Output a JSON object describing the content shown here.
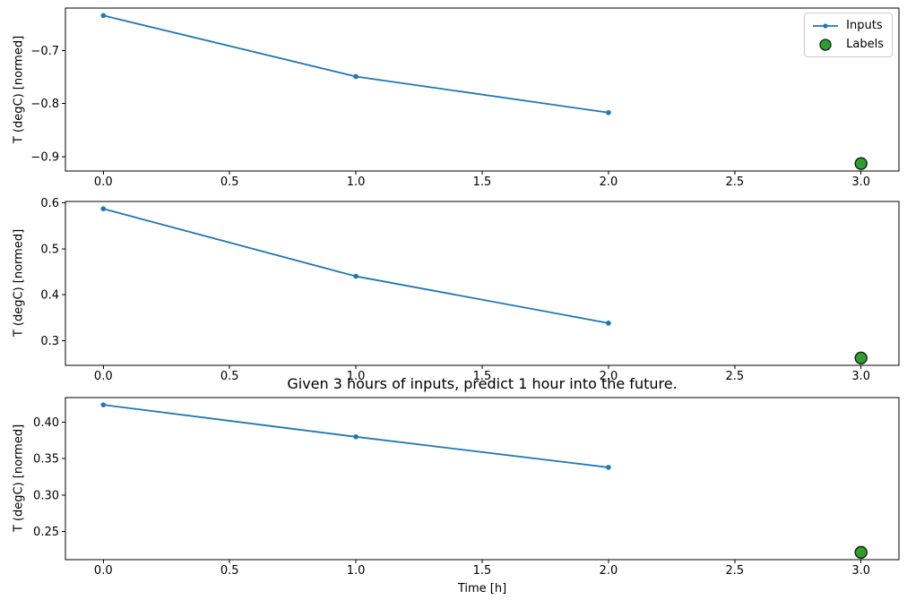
{
  "colors": {
    "inputs_line": "#1f77b4",
    "labels_marker_fill": "#2ca02c",
    "labels_marker_edge": "#1a1a1a",
    "axes_frame": "#000000",
    "text": "#000000",
    "legend_border": "#cccccc",
    "background": "#ffffff"
  },
  "legend": {
    "position": "upper right",
    "entries": [
      {
        "label": "Inputs",
        "sample": "line-with-dot-marker"
      },
      {
        "label": "Labels",
        "sample": "filled-circle"
      }
    ]
  },
  "chart_data": {
    "type": "line",
    "title": "Given 3 hours of inputs, predict 1 hour into the future.",
    "xlabel": "Time [h]",
    "grid": false,
    "xlim": [
      -0.15,
      3.15
    ],
    "xticks": [
      {
        "value": 0.0,
        "label": "0.0"
      },
      {
        "value": 0.5,
        "label": "0.5"
      },
      {
        "value": 1.0,
        "label": "1.0"
      },
      {
        "value": 1.5,
        "label": "1.5"
      },
      {
        "value": 2.0,
        "label": "2.0"
      },
      {
        "value": 2.5,
        "label": "2.5"
      },
      {
        "value": 3.0,
        "label": "3.0"
      }
    ],
    "subplots": [
      {
        "ylabel": "T (degC) [normed]",
        "ylim": [
          -0.927,
          -0.62
        ],
        "yticks": [
          {
            "value": -0.7,
            "label": "−0.7"
          },
          {
            "value": -0.8,
            "label": "−0.8"
          },
          {
            "value": -0.9,
            "label": "−0.9"
          }
        ],
        "inputs": {
          "name": "Inputs",
          "x": [
            0,
            1,
            2
          ],
          "y": [
            -0.634,
            -0.749,
            -0.817
          ]
        },
        "labels": {
          "name": "Labels",
          "x": [
            3
          ],
          "y": [
            -0.913
          ]
        },
        "show_legend": true
      },
      {
        "ylabel": "T (degC) [normed]",
        "ylim": [
          0.246,
          0.603
        ],
        "yticks": [
          {
            "value": 0.6,
            "label": "0.6"
          },
          {
            "value": 0.5,
            "label": "0.5"
          },
          {
            "value": 0.4,
            "label": "0.4"
          },
          {
            "value": 0.3,
            "label": "0.3"
          }
        ],
        "inputs": {
          "name": "Inputs",
          "x": [
            0,
            1,
            2
          ],
          "y": [
            0.587,
            0.44,
            0.338
          ]
        },
        "labels": {
          "name": "Labels",
          "x": [
            3
          ],
          "y": [
            0.262
          ]
        },
        "show_legend": false
      },
      {
        "ylabel": "T (degC) [normed]",
        "ylim": [
          0.211,
          0.434
        ],
        "yticks": [
          {
            "value": 0.4,
            "label": "0.40"
          },
          {
            "value": 0.35,
            "label": "0.35"
          },
          {
            "value": 0.3,
            "label": "0.30"
          },
          {
            "value": 0.25,
            "label": "0.25"
          }
        ],
        "inputs": {
          "name": "Inputs",
          "x": [
            0,
            1,
            2
          ],
          "y": [
            0.424,
            0.38,
            0.338
          ]
        },
        "labels": {
          "name": "Labels",
          "x": [
            3
          ],
          "y": [
            0.221
          ]
        },
        "show_legend": false
      }
    ]
  }
}
